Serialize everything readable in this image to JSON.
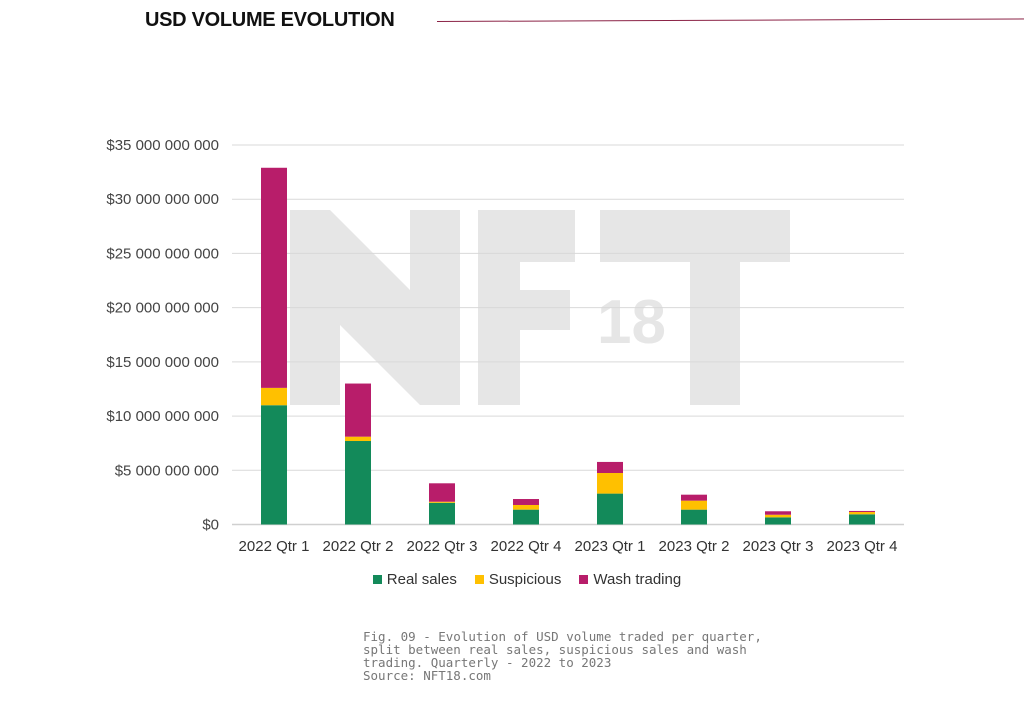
{
  "header": {
    "title": "USD VOLUME EVOLUTION"
  },
  "chart_data": {
    "type": "bar",
    "stacked": true,
    "categories": [
      "2022 Qtr 1",
      "2022 Qtr 2",
      "2022 Qtr 3",
      "2022 Qtr 4",
      "2023 Qtr 1",
      "2023 Qtr 2",
      "2023 Qtr 3",
      "2023 Qtr 4"
    ],
    "series": [
      {
        "name": "Real sales",
        "color": "#138a5a",
        "values": [
          11000000000,
          7700000000,
          2000000000,
          1370000000,
          2850000000,
          1370000000,
          660000000,
          940000000
        ]
      },
      {
        "name": "Suspicious",
        "color": "#ffc000",
        "values": [
          1600000000,
          400000000,
          100000000,
          430000000,
          1900000000,
          830000000,
          240000000,
          210000000
        ]
      },
      {
        "name": "Wash trading",
        "color": "#b81d6a",
        "values": [
          20300000000,
          4900000000,
          1700000000,
          550000000,
          1020000000,
          550000000,
          320000000,
          100000000
        ]
      }
    ],
    "yticks": [
      "$0",
      "$5 000 000 000",
      "$10 000 000 000",
      "$15 000 000 000",
      "$20 000 000 000",
      "$25 000 000 000",
      "$30 000 000 000",
      "$35 000 000 000"
    ],
    "ylim": [
      0,
      35000000000
    ],
    "grid": true,
    "legend": "bottom",
    "title": "",
    "xlabel": "",
    "ylabel": ""
  },
  "watermark": "NFT18",
  "caption": "Fig. 09 - Evolution of USD volume traded per quarter,\nsplit between real sales, suspicious sales and wash\ntrading. Quarterly - 2022 to 2023\nSource: NFT18.com"
}
